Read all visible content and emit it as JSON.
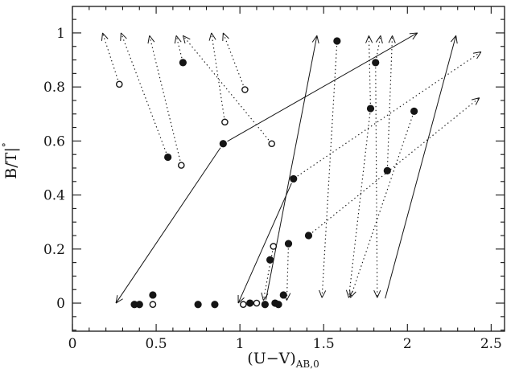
{
  "figure": {
    "background_color": "#ffffff",
    "ink_color": "#151515"
  },
  "chart_data": {
    "type": "scatter",
    "title": "",
    "xlabel_main": "(U−V)",
    "xlabel_sub": "AB,0",
    "ylabel_main": "B/T|",
    "ylabel_sup": "°",
    "xlim": [
      0,
      2.58
    ],
    "ylim": [
      -0.104,
      1.098
    ],
    "grid": false,
    "legend": "none",
    "x_ticks": {
      "values": [
        0,
        0.5,
        1,
        1.5,
        2,
        2.5
      ],
      "labels": [
        "0",
        "0.5",
        "1",
        "1.5",
        "2",
        "2.5"
      ],
      "minor_step": 0.1
    },
    "y_ticks": {
      "values": [
        0,
        0.2,
        0.4,
        0.6,
        0.8,
        1
      ],
      "labels": [
        "0",
        "0.2",
        "0.4",
        "0.6",
        "0.8",
        "1"
      ],
      "minor_step": 0.05
    },
    "series": [
      {
        "name": "filled-circles",
        "marker": "filled-circle",
        "points": [
          [
            0.66,
            0.89
          ],
          [
            1.58,
            0.97
          ],
          [
            1.81,
            0.89
          ],
          [
            1.78,
            0.72
          ],
          [
            2.04,
            0.71
          ],
          [
            1.88,
            0.49
          ],
          [
            1.32,
            0.46
          ],
          [
            0.9,
            0.59
          ],
          [
            0.57,
            0.54
          ],
          [
            1.41,
            0.25
          ],
          [
            1.29,
            0.22
          ],
          [
            1.18,
            0.16
          ],
          [
            1.26,
            0.03
          ],
          [
            0.48,
            0.03
          ],
          [
            0.37,
            -0.005
          ],
          [
            0.4,
            -0.005
          ],
          [
            0.75,
            -0.005
          ],
          [
            0.85,
            -0.005
          ],
          [
            1.06,
            0.0
          ],
          [
            1.15,
            -0.005
          ],
          [
            1.21,
            0.0
          ],
          [
            1.23,
            -0.005
          ]
        ]
      },
      {
        "name": "open-circles",
        "marker": "open-circle",
        "points": [
          [
            0.28,
            0.81
          ],
          [
            0.65,
            0.51
          ],
          [
            0.91,
            0.67
          ],
          [
            1.03,
            0.79
          ],
          [
            1.19,
            0.59
          ],
          [
            1.2,
            0.21
          ],
          [
            0.48,
            -0.005
          ],
          [
            1.02,
            -0.005
          ],
          [
            1.1,
            0.0
          ]
        ]
      }
    ],
    "arrows": [
      {
        "from": [
          0.28,
          0.81
        ],
        "to": [
          0.18,
          1.0
        ],
        "style": "dotted"
      },
      {
        "from": [
          0.57,
          0.54
        ],
        "to": [
          0.29,
          1.0
        ],
        "style": "dotted"
      },
      {
        "from": [
          0.65,
          0.51
        ],
        "to": [
          0.46,
          0.99
        ],
        "style": "dotted"
      },
      {
        "from": [
          0.66,
          0.89
        ],
        "to": [
          0.62,
          0.99
        ],
        "style": "dotted"
      },
      {
        "from": [
          1.19,
          0.59
        ],
        "to": [
          0.66,
          0.99
        ],
        "style": "dotted"
      },
      {
        "from": [
          0.91,
          0.67
        ],
        "to": [
          0.83,
          1.0
        ],
        "style": "dotted"
      },
      {
        "from": [
          1.03,
          0.79
        ],
        "to": [
          0.9,
          1.0
        ],
        "style": "dotted"
      },
      {
        "from": [
          1.78,
          0.72
        ],
        "to": [
          1.77,
          0.99
        ],
        "style": "dotted"
      },
      {
        "from": [
          1.81,
          0.89
        ],
        "to": [
          1.84,
          0.99
        ],
        "style": "dotted"
      },
      {
        "from": [
          1.88,
          0.49
        ],
        "to": [
          1.91,
          0.99
        ],
        "style": "dotted"
      },
      {
        "from": [
          1.2,
          0.21
        ],
        "to": [
          1.14,
          0.01
        ],
        "style": "dotted"
      },
      {
        "from": [
          1.29,
          0.22
        ],
        "to": [
          1.28,
          0.01
        ],
        "style": "dotted"
      },
      {
        "from": [
          1.58,
          0.97
        ],
        "to": [
          1.49,
          0.02
        ],
        "style": "dotted"
      },
      {
        "from": [
          1.78,
          0.72
        ],
        "to": [
          1.65,
          0.02
        ],
        "style": "dotted"
      },
      {
        "from": [
          2.04,
          0.71
        ],
        "to": [
          1.66,
          0.02
        ],
        "style": "dotted"
      },
      {
        "from": [
          1.81,
          0.89
        ],
        "to": [
          1.82,
          0.02
        ],
        "style": "dotted"
      },
      {
        "from": [
          1.32,
          0.46
        ],
        "to": [
          2.44,
          0.93
        ],
        "style": "dotted"
      },
      {
        "from": [
          1.41,
          0.25
        ],
        "to": [
          2.43,
          0.76
        ],
        "style": "dotted"
      },
      {
        "from": [
          0.9,
          0.59
        ],
        "to": [
          0.26,
          0.0
        ],
        "style": "solid"
      },
      {
        "from": [
          0.9,
          0.59
        ],
        "to": [
          2.06,
          1.0
        ],
        "style": "solid"
      },
      {
        "from": [
          1.15,
          -0.005
        ],
        "to": [
          1.46,
          0.99
        ],
        "style": "solid"
      },
      {
        "from": [
          1.86,
          0.0
        ],
        "to": [
          2.29,
          0.99
        ],
        "style": "solid"
      },
      {
        "from": [
          1.32,
          0.46
        ],
        "to": [
          0.99,
          0.0
        ],
        "style": "solid"
      }
    ]
  }
}
